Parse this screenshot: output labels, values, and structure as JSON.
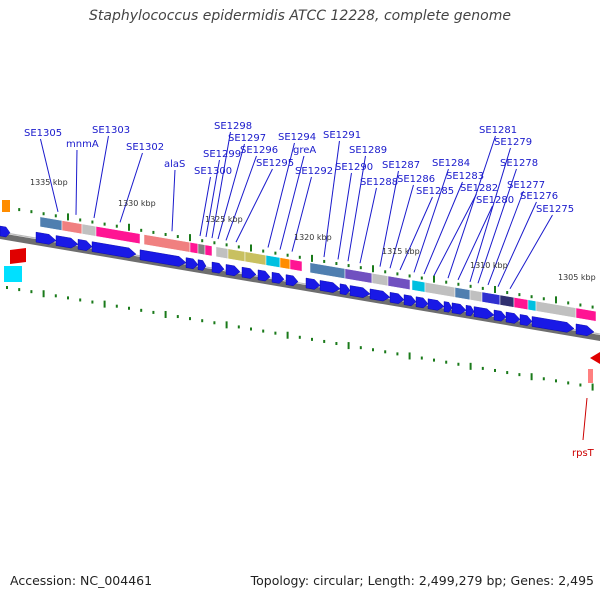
{
  "title": "Staphylococcus epidermidis ATCC 12228, complete genome",
  "footer": {
    "accession": "Accession: NC_004461",
    "summary": "Topology: circular; Length: 2,499,279 bp; Genes: 2,495"
  },
  "colors": {
    "gene_label": "#1a1acc",
    "rna_label": "#cc0000",
    "tick": "#1a7a1a",
    "backbone": "#6e6e6e",
    "cds_arrow": "#1919e6"
  },
  "scale_labels": [
    "1335 kbp",
    "1330 kbp",
    "1325 kbp",
    "1320 kbp",
    "1315 kbp",
    "1310 kbp",
    "1305 kbp"
  ],
  "gene_labels": [
    "SE1305",
    "mnmA",
    "SE1303",
    "SE1302",
    "alaS",
    "SE1300",
    "SE1299",
    "SE1298",
    "SE1297",
    "SE1296",
    "SE1295",
    "SE1294",
    "greA",
    "SE1292",
    "SE1291",
    "SE1290",
    "SE1289",
    "SE1288",
    "SE1287",
    "SE1286",
    "SE1285",
    "SE1284",
    "SE1283",
    "SE1282",
    "SE1281",
    "SE1280",
    "SE1279",
    "SE1278",
    "SE1277",
    "SE1276",
    "SE1275"
  ],
  "rna_labels": [
    "rpsT"
  ]
}
